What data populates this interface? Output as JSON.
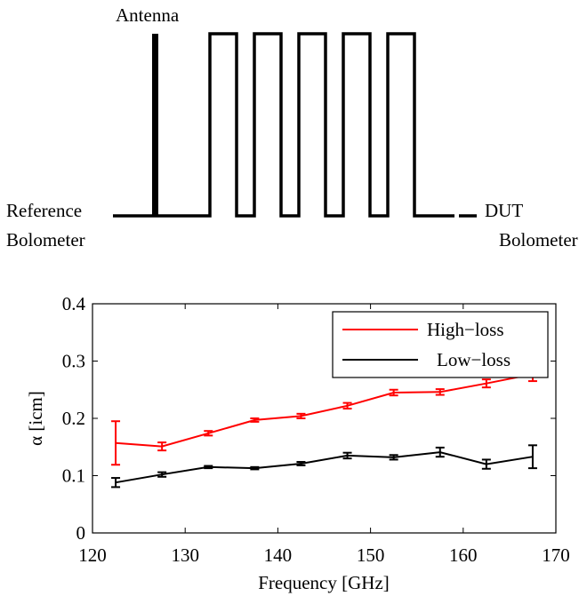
{
  "diagram": {
    "antenna_label": "Antenna",
    "left_label_line1": "Reference",
    "left_label_line2": "Bolometer",
    "right_label_line1": "DUT",
    "right_label_line2": "Bolometer",
    "meander_count": 5
  },
  "chart_data": {
    "type": "line",
    "xlabel": "Frequency [GHz]",
    "ylabel": "α [icm]",
    "xlim": [
      120,
      170
    ],
    "ylim": [
      0,
      0.4
    ],
    "xticks": [
      "120",
      "130",
      "140",
      "150",
      "160",
      "170"
    ],
    "yticks": [
      "0",
      "0.1",
      "0.2",
      "0.3",
      "0.4"
    ],
    "grid": false,
    "legend_position": "top-right",
    "series": [
      {
        "name": "High−loss",
        "color": "#ff0000",
        "x": [
          122.5,
          127.5,
          132.5,
          137.5,
          142.5,
          147.5,
          152.5,
          157.5,
          162.5,
          167.5
        ],
        "values": [
          0.157,
          0.151,
          0.174,
          0.197,
          0.204,
          0.222,
          0.245,
          0.246,
          0.261,
          0.277
        ],
        "errors": [
          0.038,
          0.007,
          0.004,
          0.003,
          0.004,
          0.005,
          0.005,
          0.005,
          0.007,
          0.012
        ]
      },
      {
        "name": "Low−loss",
        "color": "#000000",
        "x": [
          122.5,
          127.5,
          132.5,
          137.5,
          142.5,
          147.5,
          152.5,
          157.5,
          162.5,
          167.5
        ],
        "values": [
          0.088,
          0.102,
          0.115,
          0.113,
          0.121,
          0.135,
          0.132,
          0.141,
          0.12,
          0.133
        ],
        "errors": [
          0.008,
          0.004,
          0.002,
          0.002,
          0.003,
          0.005,
          0.004,
          0.008,
          0.008,
          0.02
        ]
      }
    ]
  }
}
